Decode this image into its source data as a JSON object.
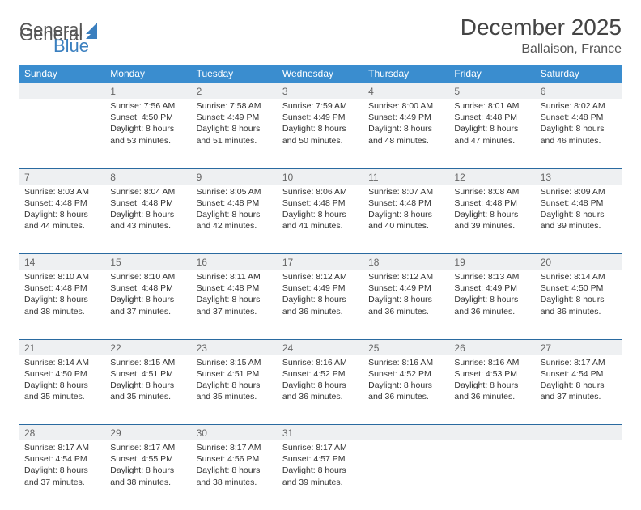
{
  "brand": {
    "part1": "General",
    "part2": "Blue"
  },
  "title": "December 2025",
  "location": "Ballaison, France",
  "colors": {
    "header_bg": "#3a8dcf",
    "header_text": "#ffffff",
    "daynum_bg": "#eef0f2",
    "rule": "#2a6aa0",
    "body_text": "#333333",
    "brand_gray": "#555555",
    "brand_blue": "#3a7fbf"
  },
  "weekdays": [
    "Sunday",
    "Monday",
    "Tuesday",
    "Wednesday",
    "Thursday",
    "Friday",
    "Saturday"
  ],
  "layout": {
    "columns": 7,
    "rows": 5,
    "cell_font_size_pt": 8,
    "header_font_size_pt": 9,
    "title_font_size_pt": 21,
    "location_font_size_pt": 12
  },
  "weeks": [
    [
      {
        "n": "",
        "sunrise": "",
        "sunset": "",
        "daylight": ""
      },
      {
        "n": "1",
        "sunrise": "Sunrise: 7:56 AM",
        "sunset": "Sunset: 4:50 PM",
        "daylight": "Daylight: 8 hours and 53 minutes."
      },
      {
        "n": "2",
        "sunrise": "Sunrise: 7:58 AM",
        "sunset": "Sunset: 4:49 PM",
        "daylight": "Daylight: 8 hours and 51 minutes."
      },
      {
        "n": "3",
        "sunrise": "Sunrise: 7:59 AM",
        "sunset": "Sunset: 4:49 PM",
        "daylight": "Daylight: 8 hours and 50 minutes."
      },
      {
        "n": "4",
        "sunrise": "Sunrise: 8:00 AM",
        "sunset": "Sunset: 4:49 PM",
        "daylight": "Daylight: 8 hours and 48 minutes."
      },
      {
        "n": "5",
        "sunrise": "Sunrise: 8:01 AM",
        "sunset": "Sunset: 4:48 PM",
        "daylight": "Daylight: 8 hours and 47 minutes."
      },
      {
        "n": "6",
        "sunrise": "Sunrise: 8:02 AM",
        "sunset": "Sunset: 4:48 PM",
        "daylight": "Daylight: 8 hours and 46 minutes."
      }
    ],
    [
      {
        "n": "7",
        "sunrise": "Sunrise: 8:03 AM",
        "sunset": "Sunset: 4:48 PM",
        "daylight": "Daylight: 8 hours and 44 minutes."
      },
      {
        "n": "8",
        "sunrise": "Sunrise: 8:04 AM",
        "sunset": "Sunset: 4:48 PM",
        "daylight": "Daylight: 8 hours and 43 minutes."
      },
      {
        "n": "9",
        "sunrise": "Sunrise: 8:05 AM",
        "sunset": "Sunset: 4:48 PM",
        "daylight": "Daylight: 8 hours and 42 minutes."
      },
      {
        "n": "10",
        "sunrise": "Sunrise: 8:06 AM",
        "sunset": "Sunset: 4:48 PM",
        "daylight": "Daylight: 8 hours and 41 minutes."
      },
      {
        "n": "11",
        "sunrise": "Sunrise: 8:07 AM",
        "sunset": "Sunset: 4:48 PM",
        "daylight": "Daylight: 8 hours and 40 minutes."
      },
      {
        "n": "12",
        "sunrise": "Sunrise: 8:08 AM",
        "sunset": "Sunset: 4:48 PM",
        "daylight": "Daylight: 8 hours and 39 minutes."
      },
      {
        "n": "13",
        "sunrise": "Sunrise: 8:09 AM",
        "sunset": "Sunset: 4:48 PM",
        "daylight": "Daylight: 8 hours and 39 minutes."
      }
    ],
    [
      {
        "n": "14",
        "sunrise": "Sunrise: 8:10 AM",
        "sunset": "Sunset: 4:48 PM",
        "daylight": "Daylight: 8 hours and 38 minutes."
      },
      {
        "n": "15",
        "sunrise": "Sunrise: 8:10 AM",
        "sunset": "Sunset: 4:48 PM",
        "daylight": "Daylight: 8 hours and 37 minutes."
      },
      {
        "n": "16",
        "sunrise": "Sunrise: 8:11 AM",
        "sunset": "Sunset: 4:48 PM",
        "daylight": "Daylight: 8 hours and 37 minutes."
      },
      {
        "n": "17",
        "sunrise": "Sunrise: 8:12 AM",
        "sunset": "Sunset: 4:49 PM",
        "daylight": "Daylight: 8 hours and 36 minutes."
      },
      {
        "n": "18",
        "sunrise": "Sunrise: 8:12 AM",
        "sunset": "Sunset: 4:49 PM",
        "daylight": "Daylight: 8 hours and 36 minutes."
      },
      {
        "n": "19",
        "sunrise": "Sunrise: 8:13 AM",
        "sunset": "Sunset: 4:49 PM",
        "daylight": "Daylight: 8 hours and 36 minutes."
      },
      {
        "n": "20",
        "sunrise": "Sunrise: 8:14 AM",
        "sunset": "Sunset: 4:50 PM",
        "daylight": "Daylight: 8 hours and 36 minutes."
      }
    ],
    [
      {
        "n": "21",
        "sunrise": "Sunrise: 8:14 AM",
        "sunset": "Sunset: 4:50 PM",
        "daylight": "Daylight: 8 hours and 35 minutes."
      },
      {
        "n": "22",
        "sunrise": "Sunrise: 8:15 AM",
        "sunset": "Sunset: 4:51 PM",
        "daylight": "Daylight: 8 hours and 35 minutes."
      },
      {
        "n": "23",
        "sunrise": "Sunrise: 8:15 AM",
        "sunset": "Sunset: 4:51 PM",
        "daylight": "Daylight: 8 hours and 35 minutes."
      },
      {
        "n": "24",
        "sunrise": "Sunrise: 8:16 AM",
        "sunset": "Sunset: 4:52 PM",
        "daylight": "Daylight: 8 hours and 36 minutes."
      },
      {
        "n": "25",
        "sunrise": "Sunrise: 8:16 AM",
        "sunset": "Sunset: 4:52 PM",
        "daylight": "Daylight: 8 hours and 36 minutes."
      },
      {
        "n": "26",
        "sunrise": "Sunrise: 8:16 AM",
        "sunset": "Sunset: 4:53 PM",
        "daylight": "Daylight: 8 hours and 36 minutes."
      },
      {
        "n": "27",
        "sunrise": "Sunrise: 8:17 AM",
        "sunset": "Sunset: 4:54 PM",
        "daylight": "Daylight: 8 hours and 37 minutes."
      }
    ],
    [
      {
        "n": "28",
        "sunrise": "Sunrise: 8:17 AM",
        "sunset": "Sunset: 4:54 PM",
        "daylight": "Daylight: 8 hours and 37 minutes."
      },
      {
        "n": "29",
        "sunrise": "Sunrise: 8:17 AM",
        "sunset": "Sunset: 4:55 PM",
        "daylight": "Daylight: 8 hours and 38 minutes."
      },
      {
        "n": "30",
        "sunrise": "Sunrise: 8:17 AM",
        "sunset": "Sunset: 4:56 PM",
        "daylight": "Daylight: 8 hours and 38 minutes."
      },
      {
        "n": "31",
        "sunrise": "Sunrise: 8:17 AM",
        "sunset": "Sunset: 4:57 PM",
        "daylight": "Daylight: 8 hours and 39 minutes."
      },
      {
        "n": "",
        "sunrise": "",
        "sunset": "",
        "daylight": ""
      },
      {
        "n": "",
        "sunrise": "",
        "sunset": "",
        "daylight": ""
      },
      {
        "n": "",
        "sunrise": "",
        "sunset": "",
        "daylight": ""
      }
    ]
  ]
}
